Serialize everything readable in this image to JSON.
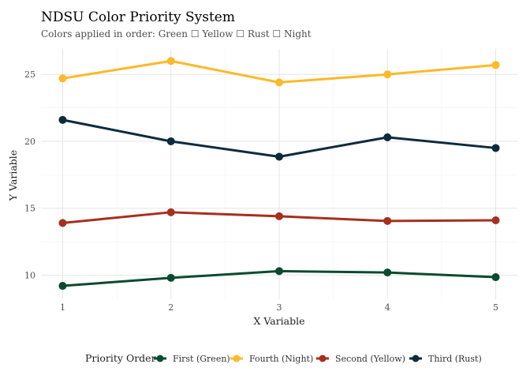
{
  "chart_data": {
    "type": "line",
    "title": "NDSU Color Priority System",
    "subtitle": "Colors applied in order: Green ☐ Yellow ☐ Rust ☐ Night",
    "xlabel": "X Variable",
    "ylabel": "Y Variable",
    "x": [
      1,
      2,
      3,
      4,
      5
    ],
    "x_ticks": [
      1,
      2,
      3,
      4,
      5
    ],
    "y_ticks": [
      10,
      15,
      20,
      25
    ],
    "xlim": [
      0.8,
      5.2
    ],
    "ylim": [
      8.2,
      26.9
    ],
    "grid": true,
    "legend_title": "Priority Order",
    "legend_position": "bottom",
    "series": [
      {
        "name": "First (Green)",
        "color": "#0a4b2f",
        "values": [
          9.2,
          9.8,
          10.3,
          10.2,
          9.85
        ]
      },
      {
        "name": "Fourth (Night)",
        "color": "#fdb927",
        "values": [
          24.7,
          26.0,
          24.4,
          25.0,
          25.7
        ]
      },
      {
        "name": "Second (Yellow)",
        "color": "#a6301d",
        "values": [
          13.9,
          14.7,
          14.4,
          14.05,
          14.1
        ]
      },
      {
        "name": "Third (Rust)",
        "color": "#0d2b3e",
        "values": [
          21.6,
          20.0,
          18.85,
          20.3,
          19.5
        ]
      }
    ]
  }
}
